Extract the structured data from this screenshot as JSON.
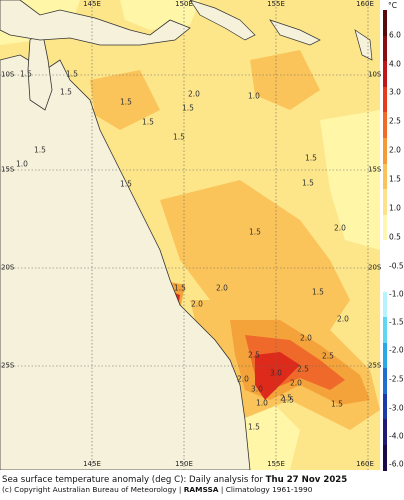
{
  "map": {
    "lon_ticks_top": [
      "145E",
      "150E",
      "155E",
      "160E"
    ],
    "lon_ticks_bottom": [
      "145E",
      "150E",
      "155E",
      "160E"
    ],
    "lat_ticks_left": [
      "10S",
      "15S",
      "20S",
      "25S"
    ],
    "lat_ticks_right": [
      "10S",
      "15S",
      "20S",
      "25S"
    ],
    "contour_labels": [
      "1.5",
      "1.5",
      "1.5",
      "1.5",
      "1.0",
      "1.5",
      "1.5",
      "1.5",
      "2.0",
      "1.5",
      "1.0",
      "1.5",
      "1.5",
      "2.0",
      "1.5",
      "2.0",
      "1.5",
      "2.0",
      "1.5",
      "2.0",
      "2.5",
      "2.5",
      "2.5",
      "2.0",
      "3.0",
      "3.0",
      "2.5",
      "1.0",
      "1.5",
      "1.5",
      "2.0",
      "2.0",
      "1.5",
      "1.5"
    ],
    "colors": {
      "ocean_1_0": "#fff9a8",
      "ocean_1_5": "#fde68a",
      "ocean_2_0": "#fbc45a",
      "ocean_2_5": "#f4a23a",
      "ocean_3_0": "#ef6a2a",
      "ocean_4_0": "#dd2a1a",
      "land": "#f6f1da"
    }
  },
  "legend": {
    "unit": "°C",
    "ticks": [
      "6.0",
      "4.0",
      "3.0",
      "2.5",
      "2.0",
      "1.5",
      "1.0",
      "0.5",
      "-0.5",
      "-1.0",
      "-1.5",
      "-2.0",
      "-2.5",
      "-3.0",
      "-4.0",
      "-6.0"
    ],
    "warm_colors": [
      "#5a0a0a",
      "#8b0e0e",
      "#c0161a",
      "#e63b1c",
      "#f06a28",
      "#f59a37",
      "#fbc25a",
      "#fde28a",
      "#fff6b2",
      "#ffffff"
    ],
    "cool_colors": [
      "#ffffff",
      "#b6f3ff",
      "#5fd6f2",
      "#2aa9e8",
      "#1e6fd0",
      "#1b3ba8",
      "#231a78",
      "#1a0a4a"
    ]
  },
  "caption": {
    "line1_prefix": "Sea surface temperature anomaly (deg C): Daily analysis for ",
    "line1_date": "Thu 27 Nov 2025",
    "line2_prefix": "(c) Copyright Australian Bureau of Meteorology | ",
    "line2_org": "RAMSSA",
    "line2_suffix": " | Climatology 1961-1990"
  }
}
